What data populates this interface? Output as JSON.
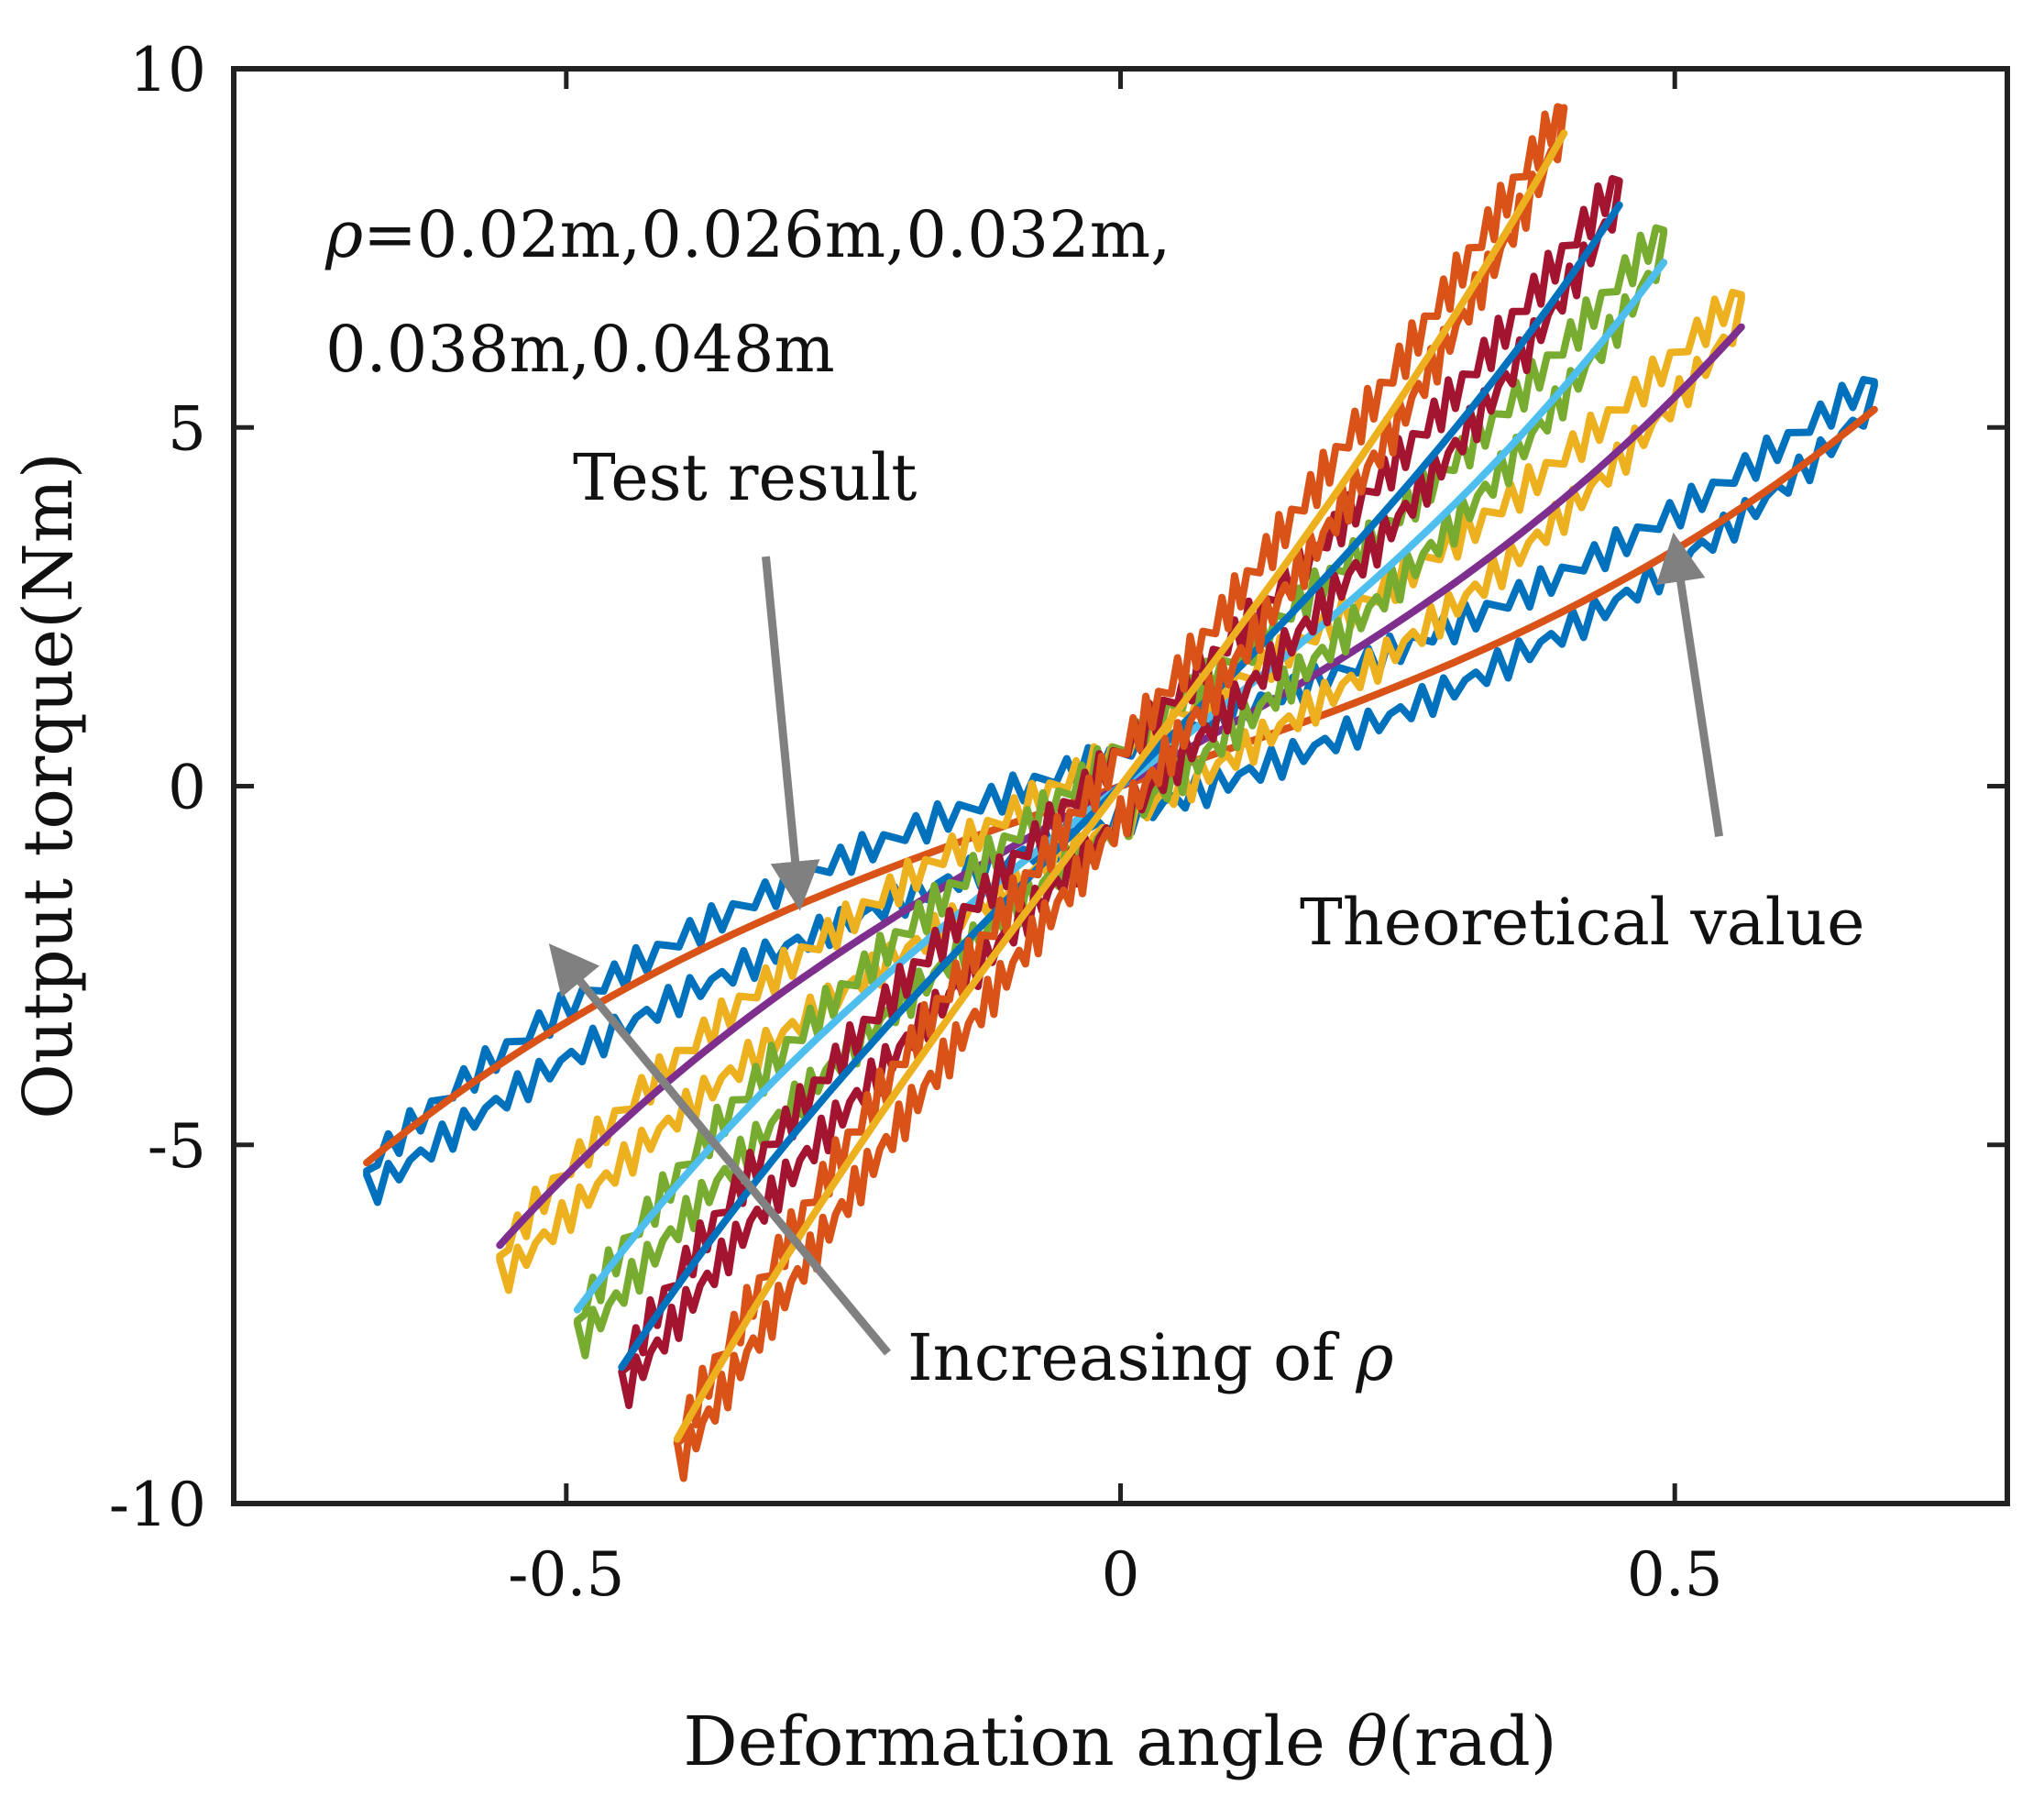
{
  "chart_data": {
    "type": "line",
    "xlabel_prefix": "Deformation angle ",
    "xlabel_symbol": "θ",
    "xlabel_suffix": "(rad)",
    "ylabel": "Output torque(Nm)",
    "xlim": [
      -0.8,
      0.8
    ],
    "ylim": [
      -10,
      10
    ],
    "xticks": [
      {
        "value": -0.5,
        "label": "-0.5"
      },
      {
        "value": 0,
        "label": "0"
      },
      {
        "value": 0.5,
        "label": "0.5"
      }
    ],
    "yticks": [
      {
        "value": -10,
        "label": "-10"
      },
      {
        "value": -5,
        "label": "-5"
      },
      {
        "value": 0,
        "label": "0"
      },
      {
        "value": 5,
        "label": "5"
      },
      {
        "value": 10,
        "label": "10"
      }
    ],
    "grid": false,
    "series": [
      {
        "name": "ρ=0.02m test",
        "kind": "test",
        "color": "#0072bd",
        "theta_max": 0.68,
        "torque_max": 5.5,
        "loop_width": 0.55,
        "nonlin": 0.32
      },
      {
        "name": "ρ=0.02m theory",
        "kind": "theory",
        "color": "#d95319",
        "theta_max": 0.68,
        "torque_max": 5.25,
        "nonlin": 0.32
      },
      {
        "name": "ρ=0.026m test",
        "kind": "test",
        "color": "#edb120",
        "theta_max": 0.56,
        "torque_max": 6.7,
        "loop_width": 0.6,
        "nonlin": 0.25
      },
      {
        "name": "ρ=0.026m theory",
        "kind": "theory",
        "color": "#7e2f8e",
        "theta_max": 0.56,
        "torque_max": 6.4,
        "nonlin": 0.25
      },
      {
        "name": "ρ=0.032m test",
        "kind": "test",
        "color": "#77ac30",
        "theta_max": 0.49,
        "torque_max": 7.6,
        "loop_width": 0.6,
        "nonlin": 0.2
      },
      {
        "name": "ρ=0.032m theory",
        "kind": "theory",
        "color": "#4dbeee",
        "theta_max": 0.49,
        "torque_max": 7.3,
        "nonlin": 0.2
      },
      {
        "name": "ρ=0.038m test",
        "kind": "test",
        "color": "#a2142f",
        "theta_max": 0.45,
        "torque_max": 8.3,
        "loop_width": 0.55,
        "nonlin": 0.15
      },
      {
        "name": "ρ=0.038m theory",
        "kind": "theory",
        "color": "#0072bd",
        "theta_max": 0.45,
        "torque_max": 8.1,
        "nonlin": 0.15
      },
      {
        "name": "ρ=0.048m test",
        "kind": "test",
        "color": "#d95319",
        "theta_max": 0.4,
        "torque_max": 9.3,
        "loop_width": 0.55,
        "nonlin": 0.1
      },
      {
        "name": "ρ=0.048m theory",
        "kind": "theory",
        "color": "#edb120",
        "theta_max": 0.4,
        "torque_max": 9.1,
        "nonlin": 0.1
      }
    ],
    "annotations": {
      "rho_line1_symbol": "ρ",
      "rho_line1_text": "=0.02m,0.026m,0.032m,",
      "rho_line2": "0.038m,0.048m",
      "test_result": "Test result",
      "theoretical_value": "Theoretical value",
      "increasing_prefix": "Increasing of ",
      "increasing_symbol": "ρ",
      "arrow_color": "#808080",
      "arrows": [
        {
          "name": "test-result-arrow",
          "from": [
            -0.32,
            3.2
          ],
          "to": [
            -0.29,
            -1.6
          ]
        },
        {
          "name": "theoretical-value-arrow",
          "from": [
            0.54,
            -0.7
          ],
          "to": [
            0.5,
            3.4
          ]
        },
        {
          "name": "increasing-rho-arrow",
          "from": [
            -0.21,
            -7.9
          ],
          "to": [
            -0.51,
            -2.3
          ]
        }
      ]
    }
  }
}
